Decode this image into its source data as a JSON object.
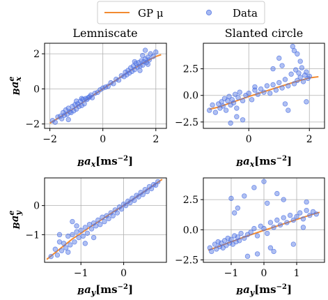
{
  "legend": {
    "gp_label": "GP μ",
    "data_label": "Data",
    "placement": "top-center"
  },
  "colors": {
    "gp_line": "#f28a30",
    "data_points": "#4f73e3",
    "grid": "#b0b0b0"
  },
  "chart_data": [
    {
      "type": "scatter",
      "title": "Lemniscate",
      "xlabel": "Bax[ms⁻²]",
      "ylabel": "Baxᵉ",
      "xlim": [
        -2.2,
        2.4
      ],
      "ylim": [
        -2.25,
        2.6
      ],
      "xticks": [
        -2,
        0,
        2
      ],
      "yticks": [
        -2,
        0,
        2
      ],
      "grid": true,
      "series": [
        {
          "name": "GP μ",
          "kind": "line",
          "x": [
            -2.0,
            -1.5,
            -1.0,
            -0.5,
            0.0,
            0.5,
            1.0,
            1.5,
            2.0,
            2.2
          ],
          "y": [
            -1.95,
            -1.5,
            -1.02,
            -0.5,
            0.0,
            0.5,
            1.0,
            1.45,
            1.85,
            1.95
          ]
        },
        {
          "name": "Data",
          "kind": "scatter",
          "x": [
            -1.9,
            -1.8,
            -1.7,
            -1.6,
            -1.55,
            -1.5,
            -1.45,
            -1.4,
            -1.35,
            -1.3,
            -1.25,
            -1.2,
            -1.15,
            -1.1,
            -1.05,
            -1.0,
            -0.95,
            -0.9,
            -0.85,
            -0.8,
            -0.75,
            -0.7,
            -0.65,
            -0.6,
            -0.55,
            -0.5,
            -0.45,
            -0.4,
            -0.3,
            -0.2,
            -0.1,
            0.0,
            0.1,
            0.2,
            0.3,
            0.4,
            0.5,
            0.6,
            0.7,
            0.8,
            0.85,
            0.9,
            0.95,
            1.0,
            1.05,
            1.1,
            1.15,
            1.2,
            1.25,
            1.3,
            1.35,
            1.4,
            1.45,
            1.5,
            1.55,
            1.6,
            1.65,
            1.7,
            1.75,
            1.8,
            1.9,
            2.0,
            -1.3,
            -1.0,
            -0.8,
            1.2,
            1.4,
            1.6,
            1.5,
            1.7
          ],
          "y": [
            -1.8,
            -1.9,
            -1.6,
            -1.55,
            -1.7,
            -1.35,
            -1.5,
            -1.2,
            -1.45,
            -1.1,
            -1.3,
            -1.35,
            -1.0,
            -1.25,
            -0.9,
            -1.15,
            -0.85,
            -1.0,
            -0.7,
            -0.95,
            -0.6,
            -0.85,
            -0.55,
            -0.6,
            -0.5,
            -0.45,
            -0.35,
            -0.5,
            -0.25,
            -0.2,
            -0.05,
            0.05,
            0.1,
            0.15,
            0.35,
            0.3,
            0.55,
            0.5,
            0.75,
            0.7,
            0.95,
            0.8,
            1.05,
            0.9,
            1.2,
            1.0,
            1.3,
            1.1,
            1.45,
            1.25,
            1.5,
            1.3,
            1.6,
            1.35,
            1.55,
            1.7,
            1.5,
            1.8,
            1.65,
            2.0,
            1.85,
            2.1,
            -1.75,
            -0.7,
            -0.55,
            1.55,
            1.05,
            2.2,
            1.9,
            1.4
          ]
        }
      ]
    },
    {
      "type": "scatter",
      "title": "Slanted circle",
      "xlabel": "Bax[ms⁻²]",
      "ylabel": "",
      "xlim": [
        -1.5,
        2.5
      ],
      "ylim": [
        -3.1,
        4.9
      ],
      "xticks": [
        0,
        2
      ],
      "yticks": [
        -2.5,
        0.0,
        2.5
      ],
      "grid": true,
      "series": [
        {
          "name": "GP μ",
          "kind": "line",
          "x": [
            -1.3,
            -1.0,
            -0.5,
            0.0,
            0.5,
            1.0,
            1.5,
            2.0,
            2.3
          ],
          "y": [
            -1.3,
            -1.1,
            -0.6,
            -0.1,
            0.35,
            0.8,
            1.25,
            1.65,
            1.75
          ]
        },
        {
          "name": "Data",
          "kind": "scatter",
          "x": [
            -1.3,
            -1.2,
            -1.1,
            -1.0,
            -0.95,
            -0.9,
            -0.85,
            -0.8,
            -0.75,
            -0.7,
            -0.65,
            -0.6,
            -0.55,
            -0.5,
            -0.45,
            -0.4,
            -0.35,
            -0.3,
            -0.2,
            -0.1,
            0.0,
            0.1,
            0.2,
            0.3,
            0.4,
            0.5,
            0.6,
            0.7,
            0.8,
            0.9,
            1.0,
            1.1,
            1.2,
            1.3,
            1.4,
            1.5,
            1.55,
            1.6,
            1.65,
            1.7,
            1.75,
            1.8,
            1.85,
            1.9,
            1.95,
            2.0,
            1.0,
            1.1,
            1.5,
            1.6,
            1.2,
            1.9,
            -0.2,
            -0.4,
            0.8,
            1.3,
            1.7,
            -0.6,
            0.2,
            1.45
          ],
          "y": [
            -1.4,
            -0.9,
            -1.6,
            -0.8,
            -1.2,
            -0.6,
            -1.0,
            -0.3,
            -1.4,
            -0.5,
            -0.1,
            -0.9,
            -0.4,
            -0.7,
            0.1,
            -1.2,
            -0.2,
            0.3,
            -0.5,
            0.0,
            0.2,
            -0.4,
            0.5,
            0.1,
            0.6,
            0.3,
            0.9,
            0.2,
            1.0,
            0.5,
            1.2,
            0.7,
            1.5,
            0.9,
            2.0,
            1.1,
            2.4,
            1.4,
            2.1,
            1.7,
            2.6,
            1.3,
            1.9,
            2.2,
            1.6,
            1.8,
            3.5,
            2.8,
            4.2,
            3.9,
            -0.8,
            -0.6,
            -2.3,
            -2.0,
            2.5,
            -1.4,
            3.2,
            -2.6,
            0.8,
            4.6
          ]
        }
      ]
    },
    {
      "type": "scatter",
      "title": "",
      "xlabel": "Bay[ms⁻²]",
      "ylabel": "Bayᵉ",
      "xlim": [
        -1.85,
        1.0
      ],
      "ylim": [
        -1.95,
        0.95
      ],
      "xticks": [
        -1,
        0
      ],
      "yticks": [
        -1,
        0
      ],
      "grid": true,
      "series": [
        {
          "name": "GP μ",
          "kind": "line",
          "x": [
            -1.8,
            -1.5,
            -1.2,
            -1.0,
            -0.8,
            -0.5,
            -0.2,
            0.0,
            0.2,
            0.5,
            0.9
          ],
          "y": [
            -1.85,
            -1.5,
            -1.15,
            -0.95,
            -0.75,
            -0.47,
            -0.18,
            0.0,
            0.2,
            0.5,
            0.9
          ]
        },
        {
          "name": "Data",
          "kind": "scatter",
          "x": [
            -1.7,
            -1.6,
            -1.55,
            -1.5,
            -1.45,
            -1.4,
            -1.35,
            -1.3,
            -1.25,
            -1.2,
            -1.15,
            -1.1,
            -1.05,
            -1.0,
            -0.95,
            -0.9,
            -0.85,
            -0.8,
            -0.75,
            -0.7,
            -0.65,
            -0.6,
            -0.55,
            -0.5,
            -0.45,
            -0.4,
            -0.35,
            -0.3,
            -0.25,
            -0.2,
            -0.15,
            -0.1,
            -0.05,
            0.0,
            0.05,
            0.1,
            0.15,
            0.2,
            0.25,
            0.3,
            0.35,
            0.4,
            0.45,
            0.5,
            0.55,
            0.6,
            0.65,
            0.7,
            0.75,
            0.8,
            -1.5,
            -1.2,
            -1.3,
            -0.9,
            -1.1,
            -0.7
          ],
          "y": [
            -1.75,
            -1.5,
            -1.7,
            -1.25,
            -1.55,
            -1.3,
            -1.45,
            -1.05,
            -1.35,
            -1.0,
            -1.25,
            -0.9,
            -1.1,
            -0.85,
            -1.05,
            -0.75,
            -0.95,
            -0.65,
            -0.8,
            -0.6,
            -0.7,
            -0.5,
            -0.65,
            -0.4,
            -0.55,
            -0.35,
            -0.45,
            -0.25,
            -0.35,
            -0.15,
            -0.25,
            -0.05,
            -0.12,
            0.05,
            0.0,
            0.15,
            0.1,
            0.25,
            0.18,
            0.35,
            0.3,
            0.45,
            0.38,
            0.55,
            0.48,
            0.65,
            0.58,
            0.72,
            0.7,
            0.82,
            -1.0,
            -0.55,
            -1.6,
            -1.3,
            -0.7,
            -1.1
          ]
        }
      ]
    },
    {
      "type": "scatter",
      "title": "",
      "xlabel": "Bay[ms⁻²]",
      "ylabel": "",
      "xlim": [
        -1.85,
        1.85
      ],
      "ylim": [
        -2.7,
        4.3
      ],
      "xticks": [
        -1,
        0,
        1
      ],
      "yticks": [
        -2.5,
        0.0,
        2.5
      ],
      "grid": true,
      "series": [
        {
          "name": "GP μ",
          "kind": "line",
          "x": [
            -1.7,
            -1.3,
            -1.0,
            -0.5,
            0.0,
            0.5,
            1.0,
            1.5,
            1.7
          ],
          "y": [
            -1.7,
            -1.3,
            -1.0,
            -0.5,
            -0.05,
            0.4,
            0.85,
            1.3,
            1.45
          ]
        },
        {
          "name": "Data",
          "kind": "scatter",
          "x": [
            -1.65,
            -1.6,
            -1.5,
            -1.45,
            -1.4,
            -1.35,
            -1.3,
            -1.25,
            -1.2,
            -1.15,
            -1.1,
            -1.05,
            -1.0,
            -0.95,
            -0.9,
            -0.85,
            -0.8,
            -0.75,
            -0.7,
            -0.6,
            -0.5,
            -0.4,
            -0.3,
            -0.2,
            -0.1,
            0.0,
            0.1,
            0.2,
            0.3,
            0.4,
            0.5,
            0.6,
            0.7,
            0.8,
            0.9,
            1.0,
            1.1,
            1.2,
            1.3,
            1.4,
            1.5,
            1.6,
            -0.6,
            -0.3,
            0.1,
            0.4,
            -0.8,
            -0.2,
            0.2,
            0.6,
            -1.0,
            0.0,
            0.9,
            1.2,
            -0.5,
            -0.9,
            0.3,
            1.3
          ],
          "y": [
            -1.5,
            -1.8,
            -1.2,
            -1.6,
            -1.0,
            -1.4,
            -1.1,
            -1.5,
            -0.9,
            -1.3,
            -0.7,
            -1.1,
            -0.8,
            -1.2,
            -0.5,
            -1.0,
            -0.6,
            -0.9,
            -0.3,
            -0.7,
            -0.4,
            -0.2,
            0.1,
            -0.5,
            0.3,
            0.1,
            -0.3,
            0.6,
            0.2,
            0.8,
            0.4,
            1.0,
            0.6,
            1.2,
            0.8,
            1.1,
            1.4,
            0.9,
            1.6,
            1.2,
            1.5,
            1.3,
            2.8,
            3.5,
            2.2,
            3.0,
            1.8,
            -2.0,
            -1.5,
            2.5,
            2.6,
            4.0,
            -1.2,
            0.2,
            -2.2,
            1.4,
            -1.8,
            2.3
          ]
        }
      ]
    }
  ]
}
